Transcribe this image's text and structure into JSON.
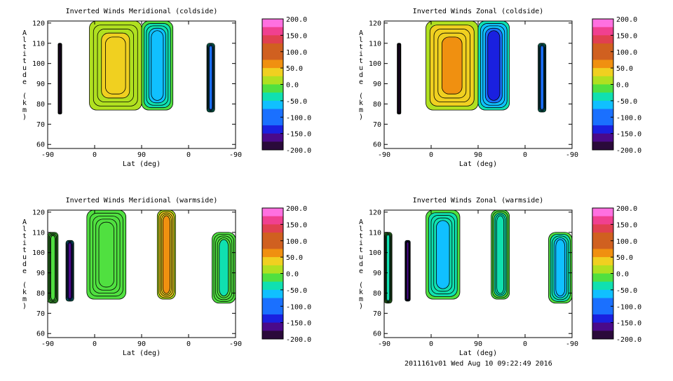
{
  "chart_data": [
    {
      "type": "heatmap",
      "title": "Inverted Winds Meridional (coldside)",
      "xlabel": "Lat (deg)",
      "ylabel": "Altitude (km)",
      "xticks": [
        "-90",
        "0",
        "90",
        "0",
        "-90"
      ],
      "yticks": [
        60,
        70,
        80,
        90,
        100,
        110,
        120
      ],
      "ylim": [
        58,
        121
      ],
      "colorbar": {
        "range": [
          -200,
          200
        ],
        "labels": [
          "200.0",
          "150.0",
          "100.0",
          "50.0",
          "0.0",
          "-50.0",
          "-100.0",
          "-150.0",
          "-200.0"
        ]
      },
      "regions": [
        {
          "x": [
            -70,
            -63
          ],
          "alt": [
            75,
            110
          ],
          "value": -200
        },
        {
          "x": [
            -10,
            90
          ],
          "alt": [
            77,
            121
          ],
          "value": 40
        },
        {
          "x": [
            90,
            150
          ],
          "alt": [
            77,
            121
          ],
          "value": -80
        },
        {
          "x": [
            215,
            230
          ],
          "alt": [
            76,
            110
          ],
          "value": -110
        }
      ]
    },
    {
      "type": "heatmap",
      "title": "Inverted Winds Zonal (coldside)",
      "xlabel": "Lat (deg)",
      "ylabel": "Altitude (km)",
      "xticks": [
        "-90",
        "0",
        "90",
        "0",
        "-90"
      ],
      "yticks": [
        60,
        70,
        80,
        90,
        100,
        110,
        120
      ],
      "ylim": [
        58,
        121
      ],
      "colorbar": {
        "range": [
          -200,
          200
        ],
        "labels": [
          "200.0",
          "150.0",
          "100.0",
          "50.0",
          "0.0",
          "-50.0",
          "-100.0",
          "-150.0",
          "-200.0"
        ]
      },
      "regions": [
        {
          "x": [
            -65,
            -58
          ],
          "alt": [
            75,
            110
          ],
          "value": -200
        },
        {
          "x": [
            -10,
            90
          ],
          "alt": [
            77,
            121
          ],
          "value": 60
        },
        {
          "x": [
            90,
            150
          ],
          "alt": [
            77,
            121
          ],
          "value": -120
        },
        {
          "x": [
            205,
            220
          ],
          "alt": [
            76,
            110
          ],
          "value": -100
        }
      ]
    },
    {
      "type": "heatmap",
      "title": "Inverted Winds Meridional (warmside)",
      "xlabel": "Lat (deg)",
      "ylabel": "Altitude (km)",
      "xticks": [
        "-90",
        "0",
        "90",
        "0",
        "-90"
      ],
      "yticks": [
        60,
        70,
        80,
        90,
        100,
        110,
        120
      ],
      "ylim": [
        58,
        121
      ],
      "colorbar": {
        "range": [
          -200,
          200
        ],
        "labels": [
          "200.0",
          "150.0",
          "100.0",
          "50.0",
          "0.0",
          "-50.0",
          "-100.0",
          "-150.0",
          "-200.0"
        ]
      },
      "regions": [
        {
          "x": [
            -90,
            -70
          ],
          "alt": [
            75,
            110
          ],
          "value": -20
        },
        {
          "x": [
            -55,
            -40
          ],
          "alt": [
            76,
            106
          ],
          "value": -160
        },
        {
          "x": [
            -15,
            60
          ],
          "alt": [
            77,
            121
          ],
          "value": -10
        },
        {
          "x": [
            120,
            155
          ],
          "alt": [
            77,
            121
          ],
          "value": 60
        },
        {
          "x": [
            225,
            270
          ],
          "alt": [
            75,
            110
          ],
          "value": -30
        }
      ]
    },
    {
      "type": "heatmap",
      "title": "Inverted Winds Zonal (warmside)",
      "xlabel": "Lat (deg)",
      "ylabel": "Altitude (km)",
      "xticks": [
        "-90",
        "0",
        "90",
        "0",
        "-90"
      ],
      "yticks": [
        60,
        70,
        80,
        90,
        100,
        110,
        120
      ],
      "ylim": [
        58,
        121
      ],
      "colorbar": {
        "range": [
          -200,
          200
        ],
        "labels": [
          "200.0",
          "150.0",
          "100.0",
          "50.0",
          "0.0",
          "-50.0",
          "-100.0",
          "-150.0",
          "-200.0"
        ]
      },
      "regions": [
        {
          "x": [
            -90,
            -75
          ],
          "alt": [
            75,
            110
          ],
          "value": -40
        },
        {
          "x": [
            -50,
            -40
          ],
          "alt": [
            76,
            106
          ],
          "value": -170
        },
        {
          "x": [
            -10,
            55
          ],
          "alt": [
            77,
            121
          ],
          "value": -60
        },
        {
          "x": [
            115,
            150
          ],
          "alt": [
            77,
            121
          ],
          "value": -50
        },
        {
          "x": [
            225,
            270
          ],
          "alt": [
            75,
            110
          ],
          "value": -70
        }
      ]
    }
  ],
  "footer": "2011161v01 Wed Aug 10 09:22:49 2016"
}
